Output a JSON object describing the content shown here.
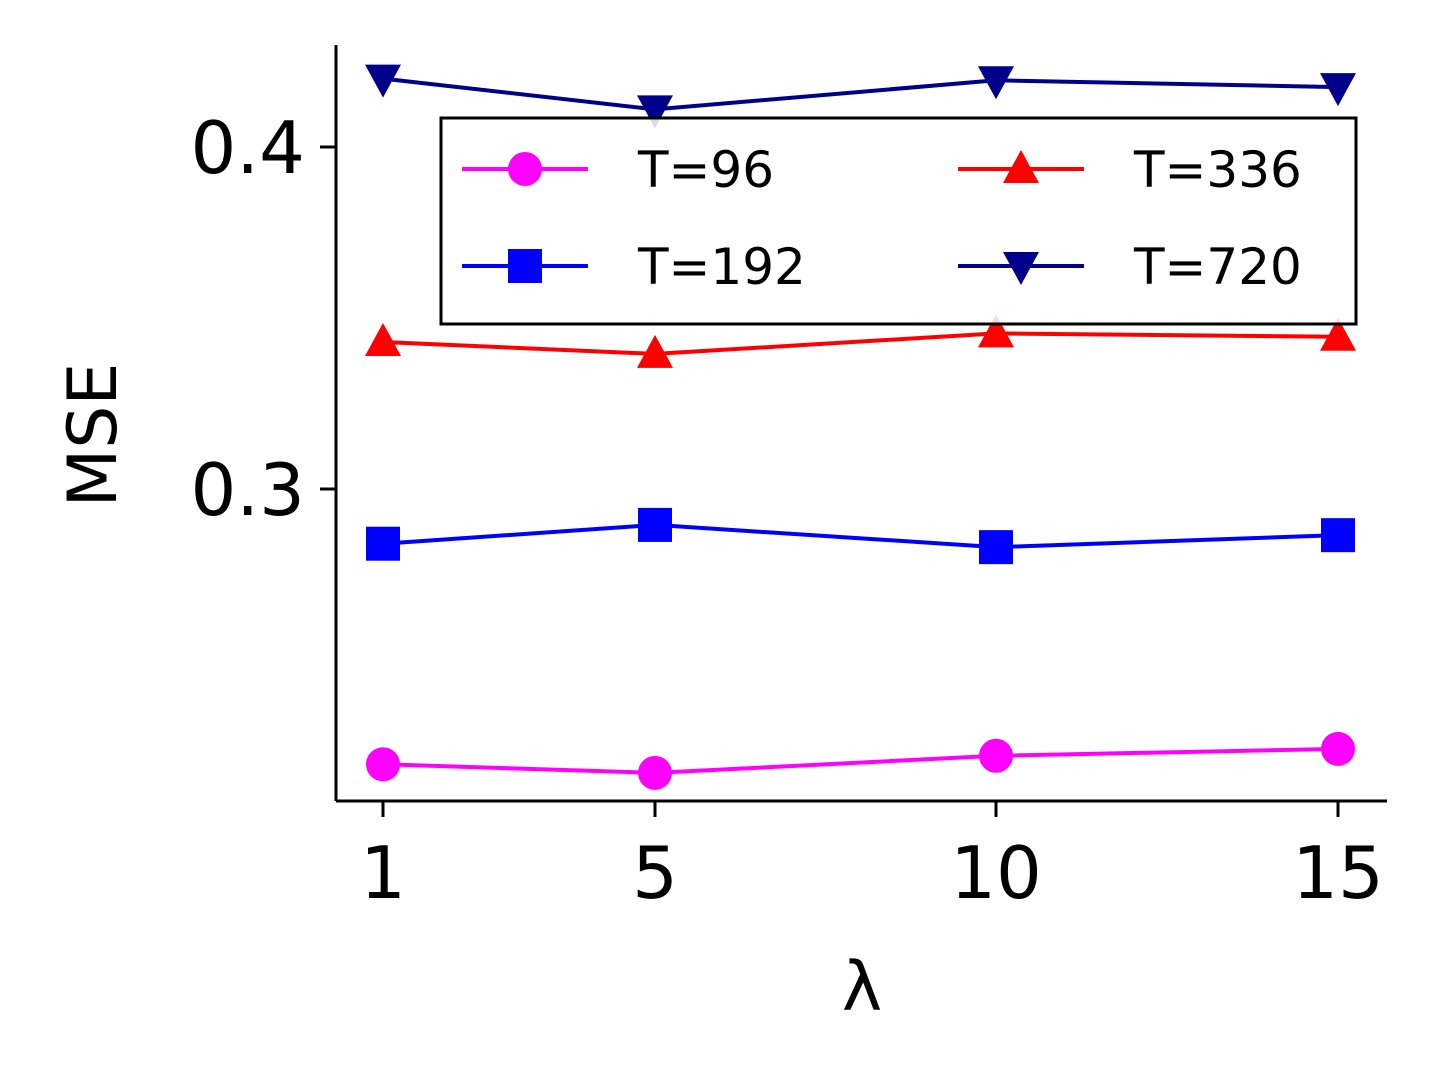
{
  "chart_data": {
    "type": "line",
    "xlabel": "λ",
    "ylabel": "MSE",
    "x": [
      1,
      5,
      10,
      15
    ],
    "x_ticks": [
      "1",
      "5",
      "10",
      "15"
    ],
    "y_ticks": [
      {
        "value": 0.3,
        "label": "0.3"
      },
      {
        "value": 0.4,
        "label": "0.4"
      }
    ],
    "ylim": [
      0.2,
      0.428
    ],
    "grid": false,
    "legend_position": "upper right",
    "legend_columns": 2,
    "series": [
      {
        "name": "T=96",
        "color": "#ff00ff",
        "marker": "circle",
        "values": [
          0.2195,
          0.217,
          0.222,
          0.224
        ]
      },
      {
        "name": "T=192",
        "color": "#0000ff",
        "marker": "square",
        "values": [
          0.284,
          0.2895,
          0.283,
          0.2865
        ]
      },
      {
        "name": "T=336",
        "color": "#ff0000",
        "marker": "triangle-up",
        "values": [
          0.343,
          0.3395,
          0.3455,
          0.3445
        ]
      },
      {
        "name": "T=720",
        "color": "#00008b",
        "marker": "triangle-down",
        "values": [
          0.42,
          0.411,
          0.4195,
          0.4175
        ]
      }
    ]
  }
}
